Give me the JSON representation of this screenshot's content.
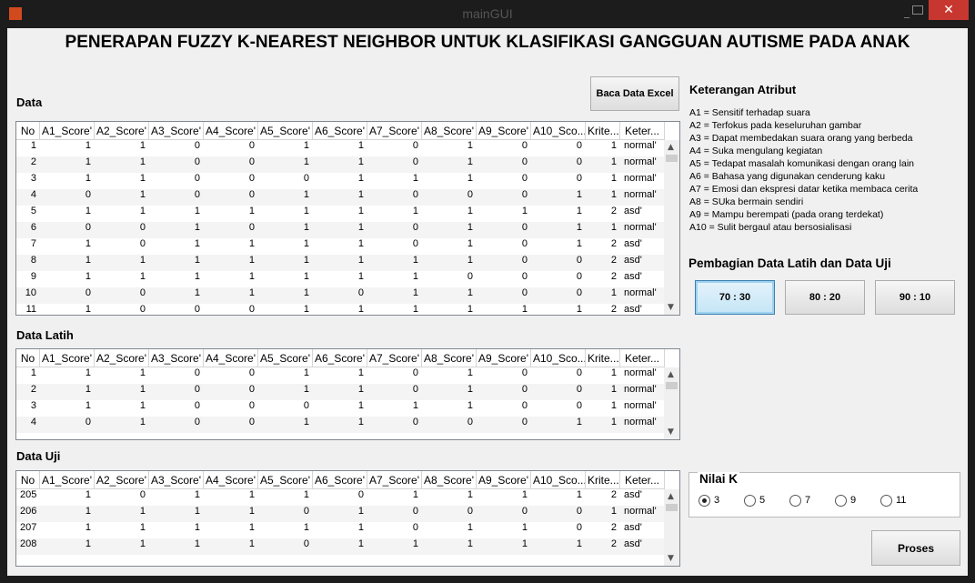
{
  "window": {
    "title": "mainGUI"
  },
  "header": {
    "title": "PENERAPAN FUZZY K-NEAREST NEIGHBOR UNTUK KLASIFIKASI GANGGUAN AUTISME PADA ANAK"
  },
  "columns": [
    "No",
    "A1_Score'",
    "A2_Score'",
    "A3_Score'",
    "A4_Score'",
    "A5_Score'",
    "A6_Score'",
    "A7_Score'",
    "A8_Score'",
    "A9_Score'",
    "A10_Sco...",
    "Krite...",
    "Keter..."
  ],
  "tables": [
    {
      "title": "Data",
      "rows": [
        [
          1,
          1,
          1,
          0,
          0,
          1,
          1,
          0,
          1,
          0,
          0,
          1,
          "normal'"
        ],
        [
          2,
          1,
          1,
          0,
          0,
          1,
          1,
          0,
          1,
          0,
          0,
          1,
          "normal'"
        ],
        [
          3,
          1,
          1,
          0,
          0,
          0,
          1,
          1,
          1,
          0,
          0,
          1,
          "normal'"
        ],
        [
          4,
          0,
          1,
          0,
          0,
          1,
          1,
          0,
          0,
          0,
          1,
          1,
          "normal'"
        ],
        [
          5,
          1,
          1,
          1,
          1,
          1,
          1,
          1,
          1,
          1,
          1,
          2,
          "asd'"
        ],
        [
          6,
          0,
          0,
          1,
          0,
          1,
          1,
          0,
          1,
          0,
          1,
          1,
          "normal'"
        ],
        [
          7,
          1,
          0,
          1,
          1,
          1,
          1,
          0,
          1,
          0,
          1,
          2,
          "asd'"
        ],
        [
          8,
          1,
          1,
          1,
          1,
          1,
          1,
          1,
          1,
          0,
          0,
          2,
          "asd'"
        ],
        [
          9,
          1,
          1,
          1,
          1,
          1,
          1,
          1,
          0,
          0,
          0,
          2,
          "asd'"
        ],
        [
          10,
          0,
          0,
          1,
          1,
          1,
          0,
          1,
          1,
          0,
          0,
          1,
          "normal'"
        ],
        [
          11,
          1,
          0,
          0,
          0,
          1,
          1,
          1,
          1,
          1,
          1,
          2,
          "asd'"
        ]
      ]
    },
    {
      "title": "Data Latih",
      "rows": [
        [
          1,
          1,
          1,
          0,
          0,
          1,
          1,
          0,
          1,
          0,
          0,
          1,
          "normal'"
        ],
        [
          2,
          1,
          1,
          0,
          0,
          1,
          1,
          0,
          1,
          0,
          0,
          1,
          "normal'"
        ],
        [
          3,
          1,
          1,
          0,
          0,
          0,
          1,
          1,
          1,
          0,
          0,
          1,
          "normal'"
        ],
        [
          4,
          0,
          1,
          0,
          0,
          1,
          1,
          0,
          0,
          0,
          1,
          1,
          "normal'"
        ]
      ]
    },
    {
      "title": "Data Uji",
      "rows": [
        [
          205,
          1,
          0,
          1,
          1,
          1,
          0,
          1,
          1,
          1,
          1,
          2,
          "asd'"
        ],
        [
          206,
          1,
          1,
          1,
          1,
          0,
          1,
          0,
          0,
          0,
          0,
          1,
          "normal'"
        ],
        [
          207,
          1,
          1,
          1,
          1,
          1,
          1,
          0,
          1,
          1,
          0,
          2,
          "asd'"
        ],
        [
          208,
          1,
          1,
          1,
          1,
          0,
          1,
          1,
          1,
          1,
          1,
          2,
          "asd'"
        ]
      ]
    }
  ],
  "load_button": "Baca Data Excel",
  "legend": {
    "title": "Keterangan Atribut",
    "items": [
      "A1 = Sensitif terhadap suara",
      "A2 = Terfokus pada keseluruhan gambar",
      "A3 = Dapat membedakan suara orang yang berbeda",
      "A4 = Suka mengulang kegiatan",
      "A5 = Tedapat masalah komunikasi dengan orang lain",
      "A6 = Bahasa yang digunakan cenderung kaku",
      "A7 = Emosi dan ekspresi datar ketika membaca cerita",
      "A8 = SUka bermain sendiri",
      "A9 = Mampu berempati (pada orang terdekat)",
      "A10 = Sulit bergaul atau bersosialisasi"
    ]
  },
  "split": {
    "title": "Pembagian Data Latih dan Data Uji",
    "options": [
      "70 : 30",
      "80 : 20",
      "90 : 10"
    ]
  },
  "k": {
    "title": "Nilai K",
    "options": [
      3,
      5,
      7,
      9,
      11
    ],
    "selected": 3
  },
  "process_button": "Proses"
}
